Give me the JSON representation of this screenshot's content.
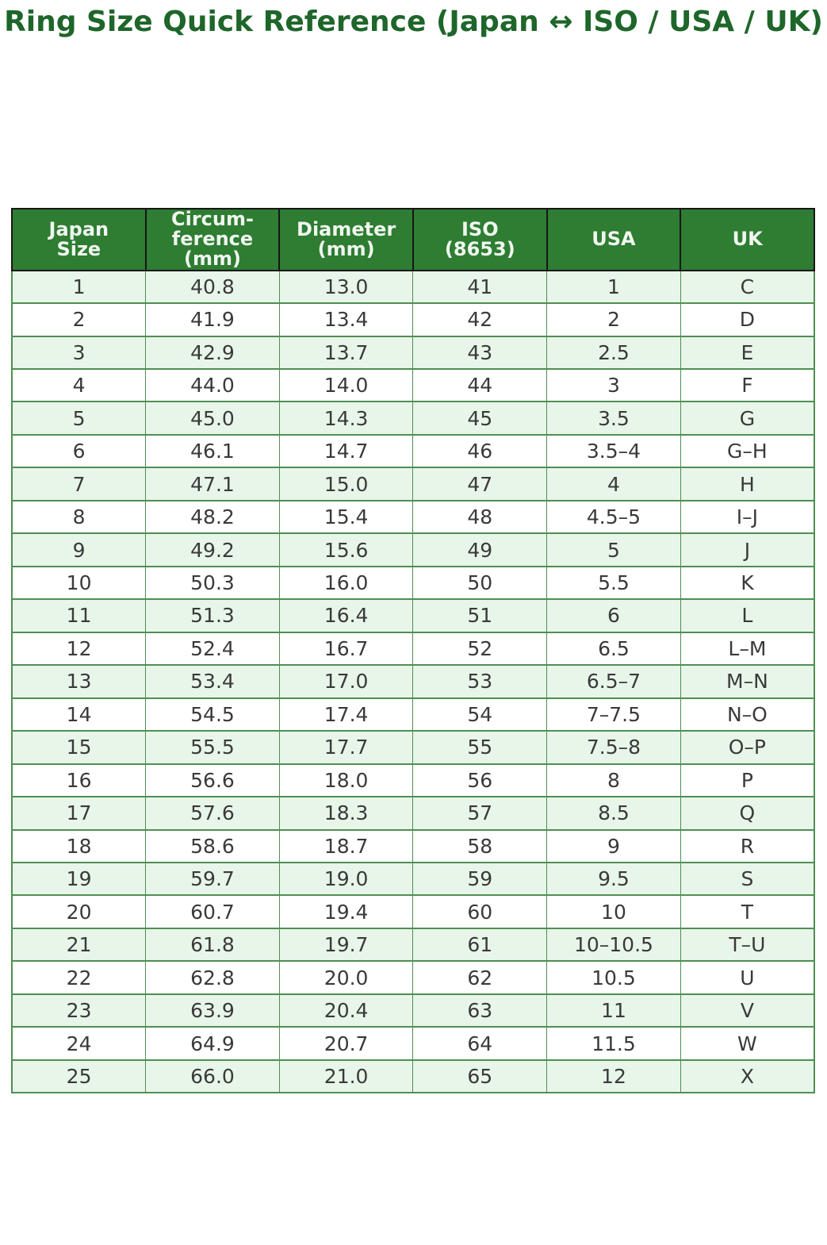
{
  "title": "Ring Size Quick Reference (Japan ↔ ISO / USA / UK)",
  "colors": {
    "title_text": "#1e662a",
    "header_bg": "#2e7d32",
    "header_text": "#f0f6f0",
    "header_border": "#161616",
    "row_alt_bg": "#e8f5e9",
    "row_bg": "#ffffff",
    "grid_green": "#4e8f52",
    "cell_text": "#3a3a3a",
    "page_bg": "#ffffff"
  },
  "table": {
    "header_labels": [
      "Japan\nSize",
      "Circum-\nference\n(mm)",
      "Diameter\n(mm)",
      "ISO\n(8653)",
      "USA",
      "UK"
    ]
  },
  "chart_data": {
    "type": "table",
    "title": "Ring Size Quick Reference (Japan ↔ ISO / USA / UK)",
    "columns": [
      "Japan Size",
      "Circumference (mm)",
      "Diameter (mm)",
      "ISO (8653)",
      "USA",
      "UK"
    ],
    "rows": [
      [
        "1",
        "40.8",
        "13.0",
        "41",
        "1",
        "C"
      ],
      [
        "2",
        "41.9",
        "13.4",
        "42",
        "2",
        "D"
      ],
      [
        "3",
        "42.9",
        "13.7",
        "43",
        "2.5",
        "E"
      ],
      [
        "4",
        "44.0",
        "14.0",
        "44",
        "3",
        "F"
      ],
      [
        "5",
        "45.0",
        "14.3",
        "45",
        "3.5",
        "G"
      ],
      [
        "6",
        "46.1",
        "14.7",
        "46",
        "3.5–4",
        "G–H"
      ],
      [
        "7",
        "47.1",
        "15.0",
        "47",
        "4",
        "H"
      ],
      [
        "8",
        "48.2",
        "15.4",
        "48",
        "4.5–5",
        "I–J"
      ],
      [
        "9",
        "49.2",
        "15.6",
        "49",
        "5",
        "J"
      ],
      [
        "10",
        "50.3",
        "16.0",
        "50",
        "5.5",
        "K"
      ],
      [
        "11",
        "51.3",
        "16.4",
        "51",
        "6",
        "L"
      ],
      [
        "12",
        "52.4",
        "16.7",
        "52",
        "6.5",
        "L–M"
      ],
      [
        "13",
        "53.4",
        "17.0",
        "53",
        "6.5–7",
        "M–N"
      ],
      [
        "14",
        "54.5",
        "17.4",
        "54",
        "7–7.5",
        "N–O"
      ],
      [
        "15",
        "55.5",
        "17.7",
        "55",
        "7.5–8",
        "O–P"
      ],
      [
        "16",
        "56.6",
        "18.0",
        "56",
        "8",
        "P"
      ],
      [
        "17",
        "57.6",
        "18.3",
        "57",
        "8.5",
        "Q"
      ],
      [
        "18",
        "58.6",
        "18.7",
        "58",
        "9",
        "R"
      ],
      [
        "19",
        "59.7",
        "19.0",
        "59",
        "9.5",
        "S"
      ],
      [
        "20",
        "60.7",
        "19.4",
        "60",
        "10",
        "T"
      ],
      [
        "21",
        "61.8",
        "19.7",
        "61",
        "10–10.5",
        "T–U"
      ],
      [
        "22",
        "62.8",
        "20.0",
        "62",
        "10.5",
        "U"
      ],
      [
        "23",
        "63.9",
        "20.4",
        "63",
        "11",
        "V"
      ],
      [
        "24",
        "64.9",
        "20.7",
        "64",
        "11.5",
        "W"
      ],
      [
        "25",
        "66.0",
        "21.0",
        "65",
        "12",
        "X"
      ]
    ]
  }
}
